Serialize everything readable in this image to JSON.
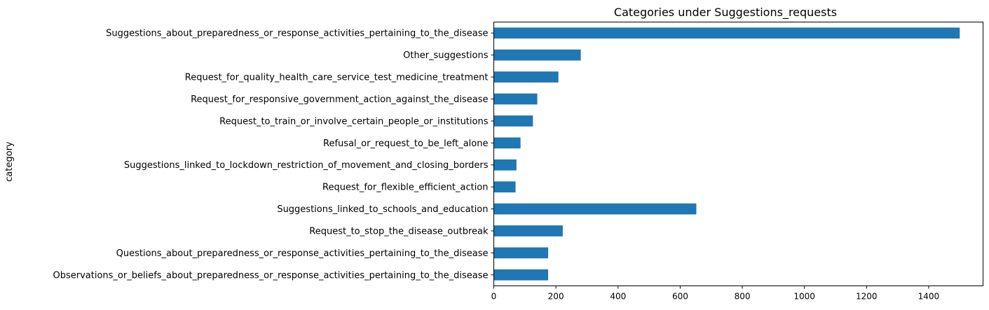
{
  "chart_data": {
    "type": "bar",
    "orientation": "horizontal",
    "title": "Categories under Suggestions_requests",
    "xlabel": "",
    "ylabel": "category",
    "xlim": [
      0,
      1575
    ],
    "xticks": [
      0,
      200,
      400,
      600,
      800,
      1000,
      1200,
      1400
    ],
    "grid": false,
    "legend": "none",
    "bar_color": "#1f77b4",
    "categories": [
      "Suggestions_about_preparedness_or_response_activities_pertaining_to_the_disease",
      "Other_suggestions",
      "Request_for_quality_health_care_service_test_medicine_treatment",
      "Request_for_responsive_government_action_against_the_disease",
      "Request_to_train_or_involve_certain_people_or_institutions",
      "Refusal_or_request_to_be_left_alone",
      "Suggestions_linked_to_lockdown_restriction_of_movement_and_closing_borders",
      "Request_for_flexible_efficient_action",
      "Suggestions_linked_to_schools_and_education",
      "Request_to_stop_the_disease_outbreak",
      "Questions_about_preparedness_or_response_activities_pertaining_to_the_disease",
      "Observations_or_beliefs_about_preparedness_or_response_activities_pertaining_to_the_disease"
    ],
    "values": [
      1500,
      280,
      208,
      140,
      126,
      86,
      73,
      70,
      652,
      222,
      175,
      175
    ]
  }
}
